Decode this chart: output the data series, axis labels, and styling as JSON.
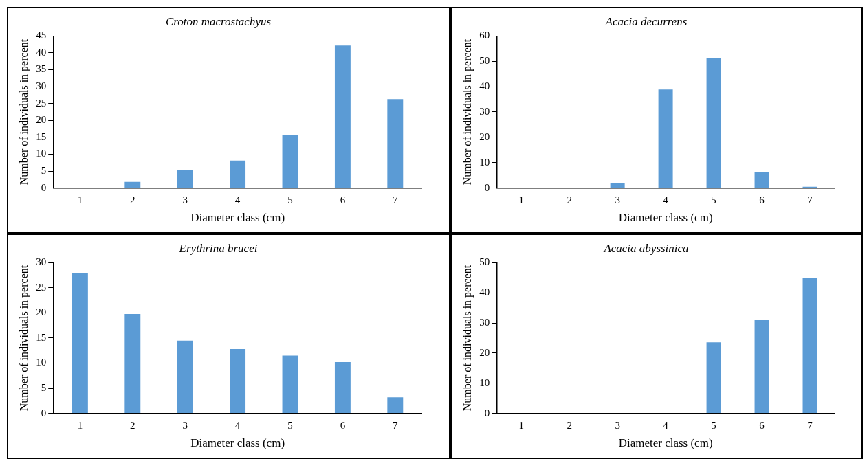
{
  "chart_data": [
    {
      "type": "bar",
      "title": "Croton macrostachyus",
      "xlabel": "Diameter class (cm)",
      "ylabel": "Number of individuals in percent",
      "categories": [
        "1",
        "2",
        "3",
        "4",
        "5",
        "6",
        "7"
      ],
      "values": [
        0,
        1.8,
        5.3,
        8.1,
        15.8,
        42.2,
        26.3
      ],
      "color": "#5b9bd5",
      "ylim": [
        0,
        45
      ],
      "yticks": [
        0,
        5,
        10,
        15,
        20,
        25,
        30,
        35,
        40,
        45
      ]
    },
    {
      "type": "bar",
      "title": "Acacia decurrens",
      "xlabel": "Diameter class (cm)",
      "ylabel": "Number of individuals in percent",
      "categories": [
        "1",
        "2",
        "3",
        "4",
        "5",
        "6",
        "7"
      ],
      "values": [
        0,
        0,
        1.8,
        38.9,
        51.3,
        6.2,
        0.5
      ],
      "color": "#5b9bd5",
      "ylim": [
        0,
        60
      ],
      "yticks": [
        0,
        10,
        20,
        30,
        40,
        50,
        60
      ]
    },
    {
      "type": "bar",
      "title": "Erythrina brucei",
      "xlabel": "Diameter class (cm)",
      "ylabel": "Number of individuals in percent",
      "categories": [
        "1",
        "2",
        "3",
        "4",
        "5",
        "6",
        "7"
      ],
      "values": [
        27.9,
        19.8,
        14.5,
        12.8,
        11.5,
        10.2,
        3.2
      ],
      "color": "#5b9bd5",
      "ylim": [
        0,
        30
      ],
      "yticks": [
        0,
        5,
        10,
        15,
        20,
        25,
        30
      ]
    },
    {
      "type": "bar",
      "title": "Acacia abyssinica",
      "xlabel": "Diameter class (cm)",
      "ylabel": "Number of individuals in percent",
      "categories": [
        "1",
        "2",
        "3",
        "4",
        "5",
        "6",
        "7"
      ],
      "values": [
        0,
        0,
        0,
        0,
        23.6,
        31,
        45.1
      ],
      "color": "#5b9bd5",
      "ylim": [
        0,
        50
      ],
      "yticks": [
        0,
        10,
        20,
        30,
        40,
        50
      ]
    }
  ]
}
